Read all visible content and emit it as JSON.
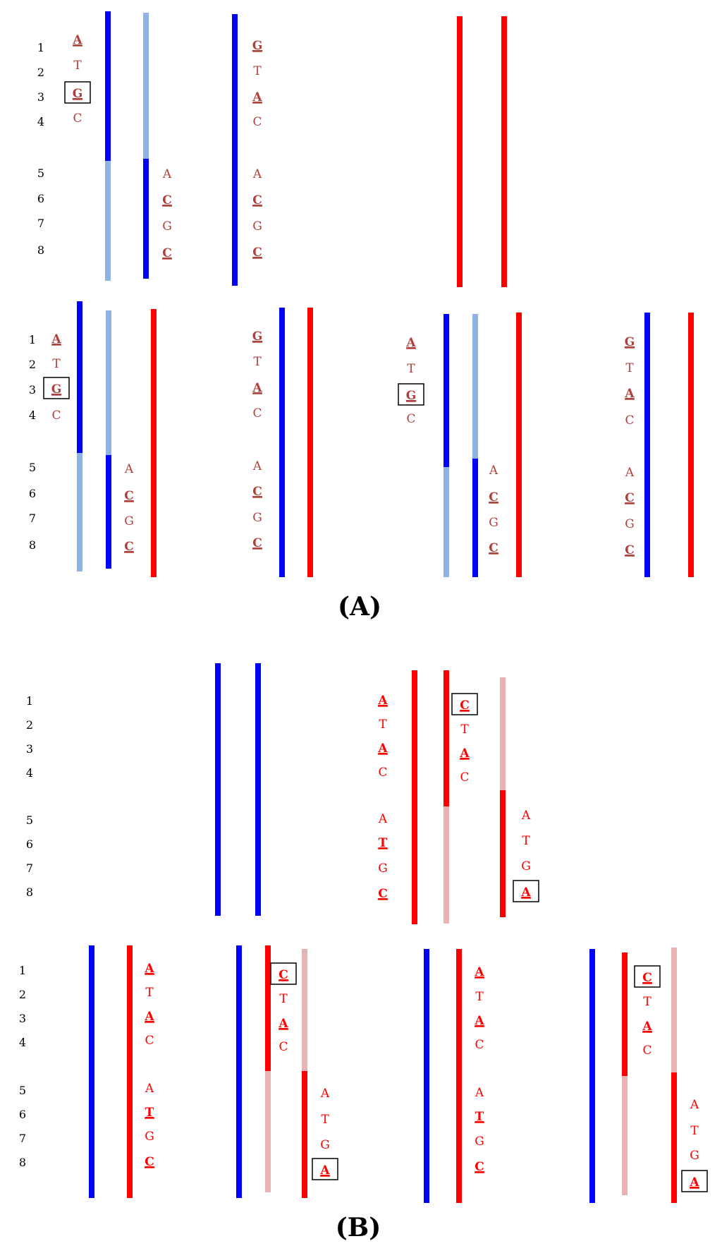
{
  "colors": {
    "blue": "#0000ff",
    "light_blue": "#8fb4e3",
    "red": "#ff0000",
    "pink": "#e6b4b4",
    "text_brown": "#b0403a",
    "text_red": "#ff0000",
    "box": "#000000"
  },
  "panels": [
    {
      "caption": "(A)",
      "row_labels": [
        "1",
        "2",
        "3",
        "4",
        "5",
        "6",
        "7",
        "8"
      ],
      "groups": [
        {
          "alleles": [
            "A",
            "T",
            "G",
            "C",
            "A",
            "C",
            "G",
            "C"
          ]
        },
        {
          "alleles": [
            "G",
            "T",
            "A",
            "C",
            "A",
            "C",
            "G",
            "C"
          ]
        },
        {
          "alleles": []
        },
        {
          "alleles": [
            "A",
            "T",
            "G",
            "C",
            "A",
            "C",
            "G",
            "C"
          ]
        },
        {
          "alleles": [
            "G",
            "T",
            "A",
            "C",
            "A",
            "C",
            "G",
            "C"
          ]
        },
        {
          "alleles": [
            "A",
            "T",
            "G",
            "C",
            "A",
            "C",
            "G",
            "C"
          ]
        },
        {
          "alleles": [
            "G",
            "T",
            "A",
            "C",
            "A",
            "C",
            "G",
            "C"
          ]
        }
      ]
    },
    {
      "caption": "(B)",
      "row_labels": [
        "1",
        "2",
        "3",
        "4",
        "5",
        "6",
        "7",
        "8"
      ],
      "groups": [
        {
          "alleles": []
        },
        {
          "alleles": [
            "A",
            "T",
            "A",
            "C",
            "A",
            "T",
            "G",
            "C"
          ]
        },
        {
          "alleles": [
            "C",
            "T",
            "A",
            "C",
            "A",
            "T",
            "G",
            "A"
          ]
        },
        {
          "alleles": [
            "A",
            "T",
            "A",
            "C",
            "A",
            "T",
            "G",
            "C"
          ]
        },
        {
          "alleles": [
            "C",
            "T",
            "A",
            "C",
            "A",
            "T",
            "G",
            "A"
          ]
        },
        {
          "alleles": [
            "A",
            "T",
            "A",
            "C",
            "A",
            "T",
            "G",
            "C"
          ]
        },
        {
          "alleles": [
            "C",
            "T",
            "A",
            "C",
            "A",
            "T",
            "G",
            "A"
          ]
        }
      ]
    }
  ]
}
